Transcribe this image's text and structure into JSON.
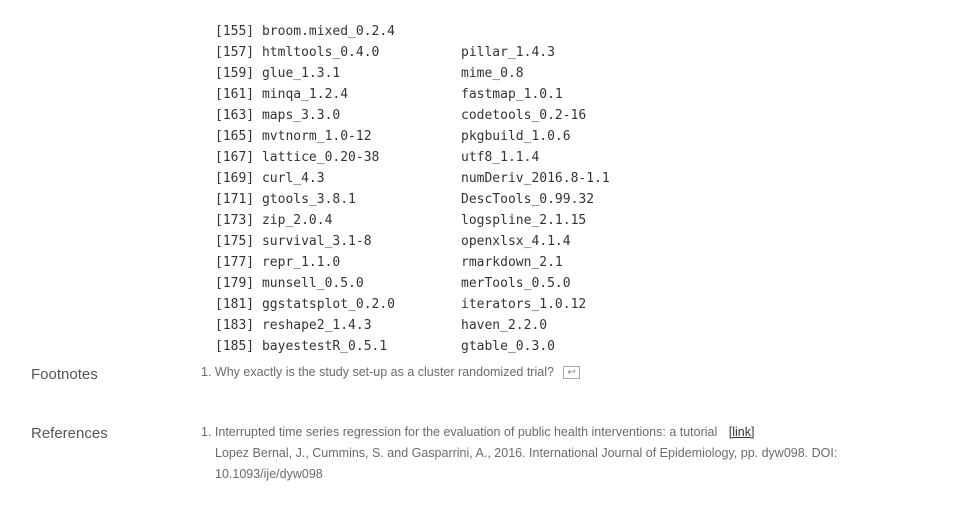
{
  "packages": [
    {
      "left": "[155] broom.mixed_0.2.4",
      "right": "pillar_1.4.3"
    },
    {
      "left": "[157] htmltools_0.4.0",
      "right": "mime_0.8"
    },
    {
      "left": "[159] glue_1.3.1",
      "right": "fastmap_1.0.1"
    },
    {
      "left": "[161] minqa_1.2.4",
      "right": "codetools_0.2-16"
    },
    {
      "left": "[163] maps_3.3.0",
      "right": "pkgbuild_1.0.6"
    },
    {
      "left": "[165] mvtnorm_1.0-12",
      "right": "utf8_1.1.4"
    },
    {
      "left": "[167] lattice_0.20-38",
      "right": "numDeriv_2016.8-1.1"
    },
    {
      "left": "[169] curl_4.3",
      "right": "DescTools_0.99.32"
    },
    {
      "left": "[171] gtools_3.8.1",
      "right": "logspline_2.1.15"
    },
    {
      "left": "[173] zip_2.0.4",
      "right": "openxlsx_4.1.4"
    },
    {
      "left": "[175] survival_3.1-8",
      "right": "rmarkdown_2.1"
    },
    {
      "left": "[177] repr_1.1.0",
      "right": "merTools_0.5.0"
    },
    {
      "left": "[179] munsell_0.5.0",
      "right": "iterators_1.0.12"
    },
    {
      "left": "[181] ggstatsplot_0.2.0",
      "right": "haven_2.2.0"
    },
    {
      "left": "[183] reshape2_1.4.3",
      "right": "gtable_0.3.0"
    },
    {
      "left": "[185] bayestestR_0.5.1",
      "right": ""
    }
  ],
  "footnotes": {
    "label": "Footnotes",
    "items": [
      {
        "text": "1. Why exactly is the study set-up as a cluster randomized trial?",
        "backref": "↩"
      }
    ]
  },
  "references": {
    "label": "References",
    "items": [
      {
        "title": "1. Interrupted time series regression for the evaluation of public health interventions: a tutorial",
        "link_label": "[link]",
        "detail": "Lopez Bernal, J., Cummins, S. and Gasparrini, A., 2016. International Journal of Epidemiology, pp. dyw098. DOI: 10.1093/ije/dyw098"
      }
    ]
  }
}
